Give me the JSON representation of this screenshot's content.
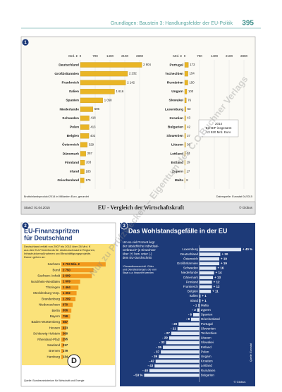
{
  "header": {
    "text": "Grundlagen: Baustein 3: Handlungsfelder der EU-Politik",
    "page": "395"
  },
  "watermark": "Nur zu Prüfzwecken – Eigentum des C.C.Buchner Verlags",
  "chart_data": [
    {
      "type": "bar",
      "badge": "1",
      "title": "EU - Vergleich der Wirtschaftskraft",
      "date": "Stand: 01.04.2015",
      "credit": "© Globus",
      "unit_label": "Mrd. €",
      "xlim": [
        0,
        2800
      ],
      "xticks": [
        0,
        700,
        1400,
        2100,
        2800
      ],
      "grid": true,
      "color": "#e9b526",
      "note": "Bruttoinlandsprodukt 2014 in Milliarden Euro, gerundet",
      "source": "Datenquelle: Eurostat 04/2015",
      "inset": [
        "2014",
        "EU-BIP insgesamt",
        "13 920 Mrd. Euro"
      ],
      "panels": [
        {
          "categories": [
            "Deutschland",
            "Großbritannien",
            "Frankreich",
            "Italien",
            "Spanien",
            "Niederlande",
            "Schweden",
            "Polen",
            "Belgien",
            "Österreich",
            "Dänemark",
            "Finnland",
            "Irland",
            "Griechenland"
          ],
          "values": [
            2904,
            2232,
            2142,
            1616,
            1058,
            596,
            418,
            413,
            402,
            329,
            257,
            203,
            185,
            179
          ],
          "value_labels": [
            "2 904",
            "2 232",
            "2 142",
            "1 616",
            "1 058",
            "596",
            "418",
            "413",
            "402",
            "329",
            "257",
            "203",
            "185",
            "179"
          ]
        },
        {
          "categories": [
            "Portugal",
            "Tschechien",
            "Rumänien",
            "Ungarn",
            "Slowakei",
            "Luxemburg",
            "Kroatien",
            "Bulgarien",
            "Slowenien",
            "Litauen",
            "Lettland",
            "Estland",
            "Zypern",
            "Malta"
          ],
          "values": [
            173,
            154,
            150,
            100,
            76,
            53,
            43,
            42,
            37,
            36,
            24,
            19,
            17,
            8
          ]
        }
      ]
    },
    {
      "type": "bar",
      "badge": "2",
      "title": [
        "EU-Finanzspritzen",
        "für Deutschland"
      ],
      "note": [
        "Deutschland erhält von 2007 bis 2013 über 26 Mrd. €",
        "aus den EU-Förderfonds für strukturschwache Regionen,",
        "Infrastrukturmaßnahmen und Beschäftigungsprojekte.",
        "Davon gehen an:"
      ],
      "xlim": [
        0,
        3800
      ],
      "color": "#f29a1d",
      "categories": [
        "Sachsen",
        "Bund",
        "Sachsen-Anhalt",
        "Nordrhein-Westfalen",
        "Thüringen",
        "Mecklenburg-Vorp.",
        "Brandenburg",
        "Niedersachsen",
        "Berlin",
        "Bayern",
        "Baden-Württemberg",
        "Hessen",
        "Schleswig-Holstein",
        "Rheinland-Pfalz",
        "Saarland",
        "Bremen",
        "Hamburg"
      ],
      "values": [
        3793,
        2750,
        2609,
        1609,
        1464,
        1302,
        1209,
        970,
        856,
        758,
        587,
        413,
        360,
        295,
        217,
        179,
        134
      ],
      "value_labels": [
        "3 793 Mio. €",
        "2 750",
        "2 609",
        "1 609",
        "1 464",
        "1 302",
        "1 209",
        "970",
        "856",
        "758",
        "587",
        "413",
        "360",
        "295",
        "217",
        "179",
        "134"
      ],
      "source": "Quelle: Bundesministerium für Wirtschaft und Energie"
    },
    {
      "type": "diverging-bar",
      "badge": "3",
      "title": "Das Wohlstandsgefälle in der EU",
      "note": [
        "Um so viel Prozent liegt",
        "der tatsächliche Individual-",
        "verbrauch* je Einwohner",
        "über (+) bzw. unter (-)",
        "dem EU-Durchschnitt"
      ],
      "footnote": [
        "*Gesamtkonsum inkl. Güter",
        "und Dienstleistungen, die vom",
        "Staat u.a. finanziert werden"
      ],
      "xlim": [
        -56,
        42
      ],
      "color": "#dfe8f5",
      "source": "Quelle: Eurostat",
      "credit": "© Globus",
      "categories": [
        "Luxemburg",
        "Deutschland",
        "Österreich",
        "Großbritannien",
        "Schweden",
        "Niederlande",
        "Dänemark",
        "Finnland",
        "Frankreich",
        "Belgien",
        "Italien",
        "Irland",
        "Malta",
        "Zypern",
        "Spanien",
        "Griechenland",
        "Portugal",
        "Slowenien",
        "Tschechien",
        "Litauen",
        "Slowakei",
        "Estland",
        "Polen",
        "Ungarn",
        "Kroatien",
        "Lettland",
        "Rumänien",
        "Bulgarien"
      ],
      "values": [
        40,
        20,
        19,
        19,
        16,
        14,
        13,
        12,
        12,
        11,
        1,
        1,
        -1,
        -2,
        -6,
        -8,
        -20,
        -21,
        -27,
        -29,
        -32,
        -35,
        -37,
        -39,
        -42,
        -43,
        -48,
        -53
      ],
      "value_labels": [
        "+ 40 %",
        "+ 20",
        "+ 19",
        "+ 19",
        "+ 16",
        "+ 14",
        "+ 13",
        "+ 12",
        "+ 12",
        "+ 11",
        "+ 1",
        "+ 1",
        "- 1",
        "- 2",
        "- 6",
        "- 8",
        "- 20",
        "- 21",
        "- 27",
        "- 29",
        "- 32",
        "- 35",
        "- 37",
        "- 39",
        "- 42",
        "- 43",
        "- 48",
        "- 53 %"
      ]
    }
  ]
}
